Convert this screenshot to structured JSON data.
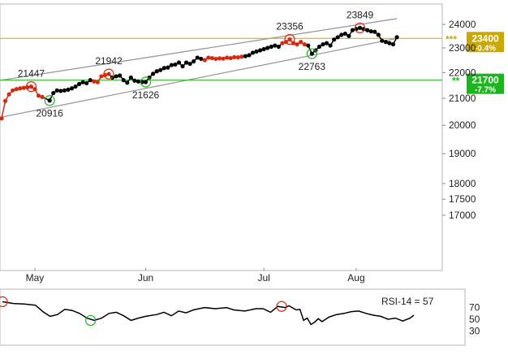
{
  "chart_data": {
    "type": "line",
    "y_scale": "log",
    "ylim": [
      15000,
      25000
    ],
    "yticks": [
      {
        "value": 24000,
        "label": "24000"
      },
      {
        "value": 23000,
        "label": "23000"
      },
      {
        "value": 22000,
        "label": "22000"
      },
      {
        "value": 21000,
        "label": "21000"
      },
      {
        "value": 20000,
        "label": "20000"
      },
      {
        "value": 19000,
        "label": "19000"
      },
      {
        "value": 18000,
        "label": "18000"
      },
      {
        "value": 17500,
        "label": "17500"
      },
      {
        "value": 17000,
        "label": "17000"
      }
    ],
    "xticks": [
      {
        "x": 9,
        "label": "May"
      },
      {
        "x": 39,
        "label": "Jun"
      },
      {
        "x": 71,
        "label": "Jul"
      },
      {
        "x": 96,
        "label": "Aug"
      }
    ],
    "x_range": [
      0,
      116
    ],
    "series": [
      {
        "points": [
          [
            0,
            20250
          ],
          [
            1,
            20900
          ],
          [
            2,
            21150
          ],
          [
            3,
            21300
          ],
          [
            4,
            21350
          ],
          [
            5,
            21380
          ],
          [
            6,
            21400
          ],
          [
            7,
            21420
          ],
          [
            8,
            21447
          ],
          [
            9,
            21350
          ],
          [
            10,
            21100
          ],
          [
            11,
            21050
          ],
          [
            13,
            20916
          ],
          [
            14,
            21200
          ],
          [
            15,
            21300
          ],
          [
            16,
            21280
          ],
          [
            17,
            21300
          ],
          [
            18,
            21330
          ],
          [
            19,
            21380
          ],
          [
            20,
            21450
          ],
          [
            21,
            21550
          ],
          [
            22,
            21620
          ],
          [
            23,
            21580
          ],
          [
            24,
            21700
          ],
          [
            25,
            21650
          ],
          [
            26,
            21620
          ],
          [
            27,
            21850
          ],
          [
            28,
            21900
          ],
          [
            29,
            21942
          ],
          [
            30,
            21800
          ],
          [
            31,
            21850
          ],
          [
            32,
            21880
          ],
          [
            33,
            21700
          ],
          [
            34,
            21600
          ],
          [
            35,
            21800
          ],
          [
            36,
            21680
          ],
          [
            37,
            21650
          ],
          [
            38,
            21630
          ],
          [
            39,
            21626
          ],
          [
            40,
            21800
          ],
          [
            41,
            21950
          ],
          [
            42,
            22050
          ],
          [
            43,
            22100
          ],
          [
            44,
            22180
          ],
          [
            45,
            22200
          ],
          [
            46,
            22300
          ],
          [
            47,
            22320
          ],
          [
            48,
            22400
          ],
          [
            49,
            22250
          ],
          [
            50,
            22400
          ],
          [
            51,
            22350
          ],
          [
            52,
            22450
          ],
          [
            53,
            22600
          ],
          [
            54,
            22550
          ],
          [
            55,
            22500
          ],
          [
            56,
            22600
          ],
          [
            57,
            22580
          ],
          [
            58,
            22550
          ],
          [
            59,
            22570
          ],
          [
            60,
            22560
          ],
          [
            61,
            22600
          ],
          [
            62,
            22580
          ],
          [
            63,
            22620
          ],
          [
            64,
            22610
          ],
          [
            65,
            22640
          ],
          [
            66,
            22660
          ],
          [
            67,
            22700
          ],
          [
            68,
            22800
          ],
          [
            69,
            22850
          ],
          [
            70,
            22900
          ],
          [
            71,
            22950
          ],
          [
            72,
            23000
          ],
          [
            73,
            23050
          ],
          [
            74,
            23100
          ],
          [
            75,
            23050
          ],
          [
            76,
            23200
          ],
          [
            77,
            23250
          ],
          [
            78,
            23356
          ],
          [
            79,
            23200
          ],
          [
            80,
            23150
          ],
          [
            81,
            23250
          ],
          [
            82,
            23150
          ],
          [
            83,
            23100
          ],
          [
            84,
            22763
          ],
          [
            85,
            22900
          ],
          [
            86,
            23050
          ],
          [
            87,
            23150
          ],
          [
            88,
            23200
          ],
          [
            89,
            23100
          ],
          [
            90,
            23350
          ],
          [
            91,
            23450
          ],
          [
            92,
            23550
          ],
          [
            93,
            23600
          ],
          [
            94,
            23500
          ],
          [
            95,
            23750
          ],
          [
            96,
            23800
          ],
          [
            97,
            23849
          ],
          [
            98,
            23800
          ],
          [
            99,
            23750
          ],
          [
            100,
            23700
          ],
          [
            101,
            23680
          ],
          [
            102,
            23550
          ],
          [
            103,
            23300
          ],
          [
            104,
            23250
          ],
          [
            105,
            23200
          ],
          [
            106,
            23150
          ],
          [
            107,
            23450
          ]
        ],
        "red_ranges": [
          [
            0,
            12
          ],
          [
            25,
            29
          ],
          [
            55,
            65
          ],
          [
            76,
            82
          ]
        ]
      }
    ],
    "annotations": [
      {
        "x": 8,
        "y": 21447,
        "label": "21447",
        "kind": "high"
      },
      {
        "x": 13,
        "y": 20916,
        "label": "20916",
        "kind": "low"
      },
      {
        "x": 29,
        "y": 21942,
        "label": "21942",
        "kind": "high"
      },
      {
        "x": 39,
        "y": 21626,
        "label": "21626",
        "kind": "low"
      },
      {
        "x": 78,
        "y": 23356,
        "label": "23356",
        "kind": "high"
      },
      {
        "x": 84,
        "y": 22763,
        "label": "22763",
        "kind": "low"
      },
      {
        "x": 97,
        "y": 23849,
        "label": "23849",
        "kind": "high"
      }
    ],
    "trend_channel": {
      "upper": [
        [
          0,
          21700
        ],
        [
          107,
          24250
        ]
      ],
      "lower": [
        [
          0,
          20300
        ],
        [
          107,
          23400
        ]
      ]
    },
    "levels": [
      {
        "name": "resistance",
        "value": 23400,
        "label": "23400",
        "pct": "-0.4%",
        "marker": "***",
        "color": "#c9a900"
      },
      {
        "name": "support",
        "value": 21700,
        "label": "21700",
        "pct": "-7.7%",
        "marker": "**",
        "color": "#1eb41e"
      }
    ],
    "rsi": {
      "label": "RSI-14 = 57",
      "yticks": [
        70,
        50,
        30
      ],
      "ylim": [
        0,
        100
      ],
      "points": [
        [
          0,
          80
        ],
        [
          3,
          77
        ],
        [
          6,
          76
        ],
        [
          9,
          74
        ],
        [
          11,
          63
        ],
        [
          13,
          55
        ],
        [
          15,
          58
        ],
        [
          17,
          67
        ],
        [
          19,
          65
        ],
        [
          21,
          60
        ],
        [
          23,
          52
        ],
        [
          25,
          48
        ],
        [
          27,
          52
        ],
        [
          29,
          60
        ],
        [
          31,
          62
        ],
        [
          33,
          56
        ],
        [
          35,
          48
        ],
        [
          37,
          52
        ],
        [
          39,
          55
        ],
        [
          42,
          58
        ],
        [
          44,
          62
        ],
        [
          46,
          56
        ],
        [
          48,
          64
        ],
        [
          50,
          61
        ],
        [
          52,
          66
        ],
        [
          55,
          70
        ],
        [
          58,
          68
        ],
        [
          61,
          70
        ],
        [
          63,
          66
        ],
        [
          66,
          64
        ],
        [
          69,
          68
        ],
        [
          71,
          68
        ],
        [
          73,
          62
        ],
        [
          75,
          72
        ],
        [
          77,
          70
        ],
        [
          78,
          73
        ],
        [
          80,
          66
        ],
        [
          81,
          67
        ],
        [
          82,
          48
        ],
        [
          83,
          52
        ],
        [
          84,
          41
        ],
        [
          85,
          45
        ],
        [
          86,
          51
        ],
        [
          87,
          46
        ],
        [
          88,
          50
        ],
        [
          89,
          54
        ],
        [
          91,
          58
        ],
        [
          93,
          60
        ],
        [
          95,
          63
        ],
        [
          97,
          64
        ],
        [
          99,
          60
        ],
        [
          101,
          57
        ],
        [
          103,
          55
        ],
        [
          105,
          50
        ],
        [
          107,
          52
        ],
        [
          109,
          47
        ],
        [
          111,
          52
        ],
        [
          112,
          57
        ]
      ],
      "markers": [
        {
          "x": 0,
          "y": 80,
          "kind": "high"
        },
        {
          "x": 24,
          "y": 48,
          "kind": "low"
        },
        {
          "x": 76,
          "y": 72,
          "kind": "high"
        }
      ]
    }
  }
}
